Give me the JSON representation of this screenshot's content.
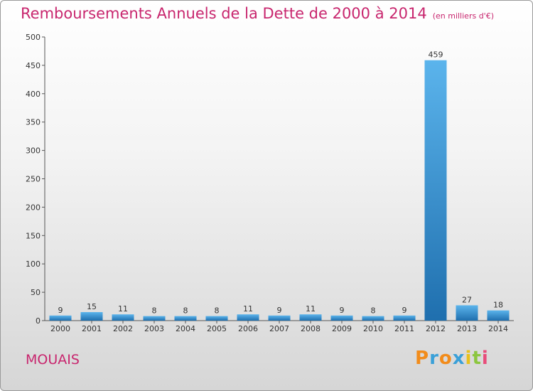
{
  "header": {
    "title": "Remboursements Annuels de la Dette de 2000 à 2014",
    "unit": "(en milliers d'€)"
  },
  "footer": {
    "town": "MOUAIS",
    "logo_letters": [
      "P",
      "r",
      "o",
      "x",
      "i",
      "t",
      "i"
    ]
  },
  "colors": {
    "title": "#c8266e",
    "bar_light": "#5bb4ec",
    "bar_dark": "#1f6fae"
  },
  "chart_data": {
    "type": "bar",
    "categories": [
      "2000",
      "2001",
      "2002",
      "2003",
      "2004",
      "2005",
      "2006",
      "2007",
      "2008",
      "2009",
      "2010",
      "2011",
      "2012",
      "2013",
      "2014"
    ],
    "values": [
      9,
      15,
      11,
      8,
      8,
      8,
      11,
      9,
      11,
      9,
      8,
      9,
      459,
      27,
      18
    ],
    "ylim": [
      0,
      500
    ],
    "yticks": [
      0,
      50,
      100,
      150,
      200,
      250,
      300,
      350,
      400,
      450,
      500
    ],
    "grid": false,
    "legend": "none"
  }
}
